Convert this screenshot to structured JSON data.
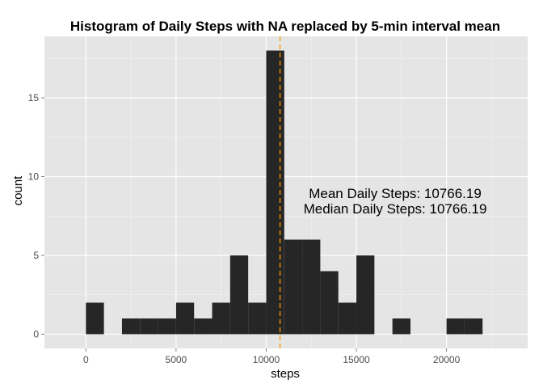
{
  "chart_data": {
    "type": "bar",
    "title": "Histogram of Daily Steps with NA replaced by 5-min interval mean",
    "xlabel": "steps",
    "ylabel": "count",
    "xlim": [
      -2300,
      24500
    ],
    "ylim": [
      -0.9,
      18.9
    ],
    "xticks": [
      0,
      5000,
      10000,
      15000,
      20000
    ],
    "yticks": [
      0,
      5,
      10,
      15
    ],
    "xtick_labels": [
      "0",
      "5000",
      "10000",
      "15000",
      "20000"
    ],
    "ytick_labels": [
      "0",
      "5",
      "10",
      "15"
    ],
    "bin_width": 1000,
    "bins": [
      {
        "x0": 0,
        "x1": 1000,
        "count": 2
      },
      {
        "x0": 1000,
        "x1": 2000,
        "count": 0
      },
      {
        "x0": 2000,
        "x1": 3000,
        "count": 1
      },
      {
        "x0": 3000,
        "x1": 4000,
        "count": 1
      },
      {
        "x0": 4000,
        "x1": 5000,
        "count": 1
      },
      {
        "x0": 5000,
        "x1": 6000,
        "count": 2
      },
      {
        "x0": 6000,
        "x1": 7000,
        "count": 1
      },
      {
        "x0": 7000,
        "x1": 8000,
        "count": 2
      },
      {
        "x0": 8000,
        "x1": 9000,
        "count": 5
      },
      {
        "x0": 9000,
        "x1": 10000,
        "count": 2
      },
      {
        "x0": 10000,
        "x1": 11000,
        "count": 18
      },
      {
        "x0": 11000,
        "x1": 12000,
        "count": 6
      },
      {
        "x0": 12000,
        "x1": 13000,
        "count": 6
      },
      {
        "x0": 13000,
        "x1": 14000,
        "count": 4
      },
      {
        "x0": 14000,
        "x1": 15000,
        "count": 2
      },
      {
        "x0": 15000,
        "x1": 16000,
        "count": 5
      },
      {
        "x0": 16000,
        "x1": 17000,
        "count": 0
      },
      {
        "x0": 17000,
        "x1": 18000,
        "count": 1
      },
      {
        "x0": 18000,
        "x1": 19000,
        "count": 0
      },
      {
        "x0": 19000,
        "x1": 20000,
        "count": 0
      },
      {
        "x0": 20000,
        "x1": 21000,
        "count": 1
      },
      {
        "x0": 21000,
        "x1": 22000,
        "count": 1
      }
    ],
    "mean_line": {
      "x": 10766.19,
      "color": "#FF9900",
      "style": "dashed"
    },
    "annotations": {
      "mean_text": "Mean Daily Steps: 10766.19",
      "median_text": "Median Daily Steps: 10766.19"
    },
    "colors": {
      "panel_background": "#E5E5E5",
      "grid_major": "#FFFFFF",
      "bar_fill": "#262626"
    },
    "grid": true
  }
}
